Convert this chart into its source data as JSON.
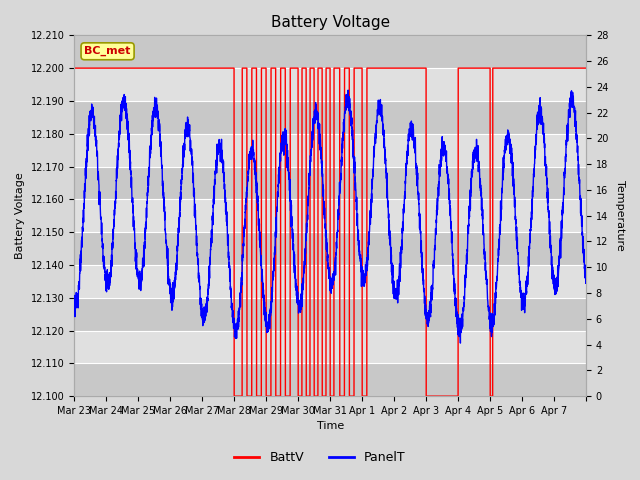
{
  "title": "Battery Voltage",
  "xlabel": "Time",
  "ylabel_left": "Battery Voltage",
  "ylabel_right": "Temperature",
  "station_label": "BC_met",
  "ylim_left": [
    12.1,
    12.21
  ],
  "ylim_right": [
    0,
    28
  ],
  "yticks_left": [
    12.1,
    12.11,
    12.12,
    12.13,
    12.14,
    12.15,
    12.16,
    12.17,
    12.18,
    12.19,
    12.2,
    12.21
  ],
  "yticks_right": [
    0,
    2,
    4,
    6,
    8,
    10,
    12,
    14,
    16,
    18,
    20,
    22,
    24,
    26,
    28
  ],
  "xtick_labels": [
    "Mar 23",
    "Mar 24",
    "Mar 25",
    "Mar 26",
    "Mar 27",
    "Mar 28",
    "Mar 29",
    "Mar 30",
    "Mar 31",
    "Apr 1",
    "Apr 2",
    "Apr 3",
    "Apr 4",
    "Apr 5",
    "Apr 6",
    "Apr 7"
  ],
  "bg_color": "#d8d8d8",
  "plot_bg_color": "#e8e8e8",
  "grid_color": "#ffffff",
  "battv_color": "#ff0000",
  "panelt_color": "#0000ff",
  "legend_battv": "BattV",
  "legend_panelt": "PanelT",
  "station_box_color": "#ffff99",
  "station_text_color": "#cc0000",
  "station_border_color": "#999900"
}
